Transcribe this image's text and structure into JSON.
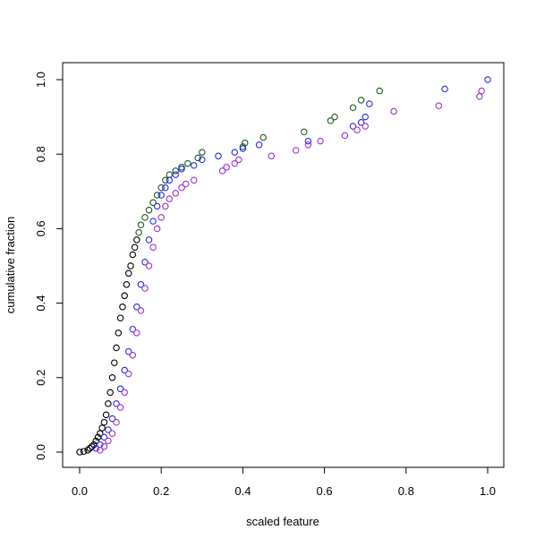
{
  "chart_data": {
    "type": "scatter",
    "title": "",
    "xlabel": "scaled feature",
    "ylabel": "cumulative fraction",
    "xlim": [
      0,
      1
    ],
    "ylim": [
      0,
      1
    ],
    "x_ticks": [
      0.0,
      0.2,
      0.4,
      0.6,
      0.8,
      1.0
    ],
    "y_ticks": [
      0.0,
      0.2,
      0.4,
      0.6,
      0.8,
      1.0
    ],
    "x_tick_labels": [
      "0.0",
      "0.2",
      "0.4",
      "0.6",
      "0.8",
      "1.0"
    ],
    "y_tick_labels": [
      "0.0",
      "0.2",
      "0.4",
      "0.6",
      "0.8",
      "1.0"
    ],
    "grid": false,
    "legend": "none",
    "marker": "open-circle",
    "series": [
      {
        "color": "#000000",
        "points": [
          [
            0.0,
            0.0
          ],
          [
            0.01,
            0.002
          ],
          [
            0.02,
            0.005
          ],
          [
            0.025,
            0.01
          ],
          [
            0.03,
            0.015
          ],
          [
            0.035,
            0.02
          ],
          [
            0.04,
            0.03
          ],
          [
            0.045,
            0.04
          ],
          [
            0.05,
            0.05
          ],
          [
            0.055,
            0.065
          ],
          [
            0.06,
            0.08
          ],
          [
            0.065,
            0.1
          ],
          [
            0.07,
            0.13
          ],
          [
            0.075,
            0.16
          ],
          [
            0.08,
            0.2
          ],
          [
            0.085,
            0.24
          ],
          [
            0.09,
            0.28
          ],
          [
            0.095,
            0.32
          ],
          [
            0.1,
            0.36
          ],
          [
            0.105,
            0.39
          ],
          [
            0.11,
            0.42
          ],
          [
            0.115,
            0.45
          ],
          [
            0.12,
            0.48
          ],
          [
            0.125,
            0.5
          ],
          [
            0.13,
            0.53
          ],
          [
            0.135,
            0.55
          ],
          [
            0.14,
            0.57
          ]
        ]
      },
      {
        "color": "#1f5a1f",
        "points": [
          [
            0.145,
            0.59
          ],
          [
            0.15,
            0.61
          ],
          [
            0.16,
            0.63
          ],
          [
            0.17,
            0.65
          ],
          [
            0.18,
            0.67
          ],
          [
            0.19,
            0.69
          ],
          [
            0.2,
            0.71
          ],
          [
            0.21,
            0.73
          ],
          [
            0.22,
            0.745
          ],
          [
            0.235,
            0.755
          ],
          [
            0.25,
            0.765
          ],
          [
            0.265,
            0.775
          ],
          [
            0.29,
            0.79
          ],
          [
            0.3,
            0.805
          ],
          [
            0.4,
            0.82
          ],
          [
            0.405,
            0.83
          ],
          [
            0.45,
            0.845
          ],
          [
            0.55,
            0.86
          ],
          [
            0.615,
            0.89
          ],
          [
            0.625,
            0.9
          ],
          [
            0.67,
            0.925
          ],
          [
            0.69,
            0.945
          ],
          [
            0.735,
            0.97
          ]
        ]
      },
      {
        "color": "#2a2ae8",
        "points": [
          [
            0.04,
            0.01
          ],
          [
            0.05,
            0.02
          ],
          [
            0.06,
            0.04
          ],
          [
            0.07,
            0.06
          ],
          [
            0.08,
            0.09
          ],
          [
            0.09,
            0.13
          ],
          [
            0.1,
            0.17
          ],
          [
            0.11,
            0.22
          ],
          [
            0.12,
            0.27
          ],
          [
            0.13,
            0.33
          ],
          [
            0.14,
            0.39
          ],
          [
            0.15,
            0.45
          ],
          [
            0.16,
            0.51
          ],
          [
            0.17,
            0.57
          ],
          [
            0.18,
            0.62
          ],
          [
            0.19,
            0.66
          ],
          [
            0.2,
            0.69
          ],
          [
            0.21,
            0.71
          ],
          [
            0.22,
            0.73
          ],
          [
            0.235,
            0.745
          ],
          [
            0.25,
            0.76
          ],
          [
            0.28,
            0.77
          ],
          [
            0.3,
            0.785
          ],
          [
            0.34,
            0.795
          ],
          [
            0.38,
            0.805
          ],
          [
            0.4,
            0.815
          ],
          [
            0.44,
            0.825
          ],
          [
            0.56,
            0.835
          ],
          [
            0.67,
            0.875
          ],
          [
            0.69,
            0.885
          ],
          [
            0.7,
            0.9
          ],
          [
            0.71,
            0.935
          ],
          [
            0.895,
            0.975
          ],
          [
            1.0,
            1.0
          ]
        ]
      },
      {
        "color": "#9b32c8",
        "points": [
          [
            0.05,
            0.005
          ],
          [
            0.06,
            0.015
          ],
          [
            0.07,
            0.03
          ],
          [
            0.08,
            0.05
          ],
          [
            0.09,
            0.08
          ],
          [
            0.1,
            0.12
          ],
          [
            0.11,
            0.16
          ],
          [
            0.12,
            0.21
          ],
          [
            0.13,
            0.26
          ],
          [
            0.14,
            0.32
          ],
          [
            0.15,
            0.38
          ],
          [
            0.16,
            0.44
          ],
          [
            0.17,
            0.5
          ],
          [
            0.18,
            0.55
          ],
          [
            0.19,
            0.6
          ],
          [
            0.2,
            0.63
          ],
          [
            0.21,
            0.66
          ],
          [
            0.22,
            0.68
          ],
          [
            0.235,
            0.695
          ],
          [
            0.25,
            0.71
          ],
          [
            0.26,
            0.72
          ],
          [
            0.28,
            0.73
          ],
          [
            0.35,
            0.755
          ],
          [
            0.36,
            0.765
          ],
          [
            0.38,
            0.775
          ],
          [
            0.39,
            0.785
          ],
          [
            0.47,
            0.795
          ],
          [
            0.53,
            0.81
          ],
          [
            0.56,
            0.825
          ],
          [
            0.59,
            0.835
          ],
          [
            0.65,
            0.85
          ],
          [
            0.68,
            0.865
          ],
          [
            0.7,
            0.875
          ],
          [
            0.77,
            0.915
          ],
          [
            0.88,
            0.93
          ],
          [
            0.98,
            0.955
          ],
          [
            0.985,
            0.97
          ]
        ]
      }
    ]
  }
}
